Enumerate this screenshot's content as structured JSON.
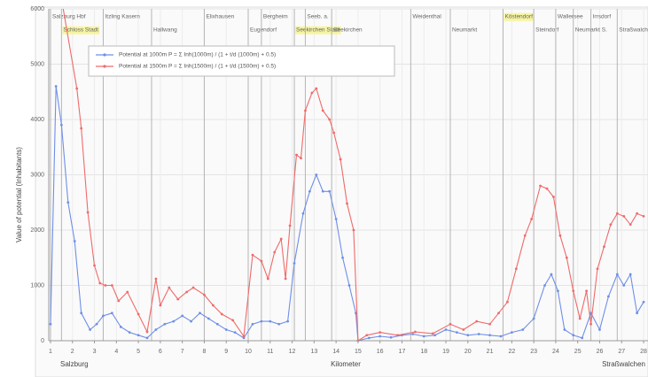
{
  "chart_data": {
    "type": "line",
    "xlabel_left": "Salzburg",
    "xlabel": "Kilometer",
    "xlabel_right": "Straßwalchen",
    "ylabel": "Value of potential (Inhabitants)",
    "xlim": [
      0.92,
      28.2
    ],
    "ylim": [
      0,
      6000
    ],
    "xticks": [
      1,
      2,
      3,
      4,
      5,
      6,
      7,
      8,
      9,
      10,
      11,
      12,
      13,
      14,
      15,
      16,
      17,
      18,
      19,
      20,
      21,
      22,
      23,
      24,
      25,
      26,
      27,
      28
    ],
    "yticks": [
      0,
      1000,
      2000,
      3000,
      4000,
      5000,
      6000
    ],
    "grid": true,
    "stations": [
      {
        "km": 1.0,
        "label": "Salzburg Hbf",
        "highlight": false
      },
      {
        "km": 1.5,
        "label": "Schloss Stadt",
        "highlight": true
      },
      {
        "km": 3.4,
        "label": "Itzling Kasern",
        "highlight": false
      },
      {
        "km": 5.6,
        "label": "Hallwang",
        "highlight": false
      },
      {
        "km": 8.0,
        "label": "Elixhausen",
        "highlight": false
      },
      {
        "km": 10.0,
        "label": "Eugendorf",
        "highlight": false
      },
      {
        "km": 10.6,
        "label": "Bergheim",
        "highlight": false
      },
      {
        "km": 12.1,
        "label": "Seekirchen Stadt",
        "highlight": true
      },
      {
        "km": 12.6,
        "label": "Seeb. a.",
        "highlight": false
      },
      {
        "km": 13.8,
        "label": "Seekirchen",
        "highlight": false
      },
      {
        "km": 17.4,
        "label": "Weidenthal",
        "highlight": false
      },
      {
        "km": 19.2,
        "label": "Neumarkt",
        "highlight": false
      },
      {
        "km": 21.6,
        "label": "Köstendorf",
        "highlight": true
      },
      {
        "km": 23.0,
        "label": "Steindorf",
        "highlight": false
      },
      {
        "km": 24.0,
        "label": "Wallersee",
        "highlight": false
      },
      {
        "km": 24.8,
        "label": "Neumarkt S.",
        "highlight": false
      },
      {
        "km": 25.6,
        "label": "Irrsdorf",
        "highlight": false
      },
      {
        "km": 26.8,
        "label": "Straßwalchen",
        "highlight": false
      }
    ],
    "series": [
      {
        "name": "Potential at 1000m   P = Σ Inh(1000m) / (1 + t/d (1000m) + 0.5)",
        "color": "#6f8fe8",
        "x": [
          1.0,
          1.25,
          1.5,
          1.8,
          2.1,
          2.4,
          2.8,
          3.1,
          3.4,
          3.8,
          4.2,
          4.6,
          5.0,
          5.4,
          5.8,
          6.2,
          6.6,
          7.0,
          7.4,
          7.8,
          8.2,
          8.6,
          9.0,
          9.4,
          9.8,
          10.2,
          10.6,
          11.0,
          11.4,
          11.8,
          12.1,
          12.5,
          12.8,
          13.1,
          13.4,
          13.7,
          14.0,
          14.3,
          14.6,
          14.9,
          15.0,
          15.5,
          16.0,
          16.5,
          17.0,
          17.5,
          18.0,
          18.5,
          19.0,
          19.5,
          20.0,
          20.5,
          21.0,
          21.5,
          22.0,
          22.5,
          23.0,
          23.5,
          23.8,
          24.1,
          24.4,
          24.8,
          25.2,
          25.6,
          26.0,
          26.4,
          26.8,
          27.1,
          27.4,
          27.7,
          28.0
        ],
        "values": [
          300,
          4600,
          3900,
          2500,
          1800,
          500,
          200,
          300,
          450,
          500,
          250,
          150,
          100,
          50,
          200,
          300,
          350,
          450,
          350,
          500,
          400,
          300,
          200,
          150,
          50,
          300,
          350,
          350,
          300,
          350,
          1400,
          2300,
          2700,
          3000,
          2700,
          2700,
          2200,
          1500,
          1000,
          500,
          0,
          50,
          80,
          60,
          100,
          120,
          80,
          100,
          200,
          150,
          100,
          120,
          100,
          80,
          150,
          200,
          400,
          1000,
          1200,
          900,
          200,
          100,
          50,
          500,
          200,
          800,
          1200,
          1000,
          1200,
          500,
          700
        ]
      },
      {
        "name": "Potential at 1500m   P = Σ Inh(1500m) / (1 + t/d (1500m) + 0.5)",
        "color": "#f06a6a",
        "x": [
          1.45,
          2.2,
          2.4,
          2.7,
          3.0,
          3.25,
          3.5,
          3.8,
          4.1,
          4.5,
          5.0,
          5.4,
          5.8,
          6.0,
          6.4,
          6.8,
          7.2,
          7.5,
          8.0,
          8.4,
          8.8,
          9.3,
          9.8,
          10.2,
          10.6,
          10.9,
          11.2,
          11.5,
          11.7,
          11.9,
          12.2,
          12.4,
          12.6,
          12.9,
          13.1,
          13.4,
          13.7,
          13.9,
          14.2,
          14.5,
          14.8,
          15.0,
          15.4,
          16.0,
          16.8,
          17.6,
          18.4,
          19.2,
          19.8,
          20.4,
          21.0,
          21.4,
          21.8,
          22.2,
          22.6,
          22.9,
          23.3,
          23.6,
          23.9,
          24.2,
          24.5,
          24.8,
          25.1,
          25.4,
          25.6,
          25.9,
          26.2,
          26.5,
          26.8,
          27.1,
          27.4,
          27.7,
          28.0
        ],
        "values": [
          6300,
          4560,
          3840,
          2320,
          1360,
          1040,
          1000,
          1000,
          720,
          880,
          480,
          160,
          1120,
          640,
          960,
          750,
          880,
          960,
          830,
          640,
          480,
          370,
          80,
          1550,
          1440,
          1120,
          1600,
          1840,
          1120,
          2080,
          3360,
          3300,
          4160,
          4480,
          4560,
          4160,
          4000,
          3760,
          3280,
          2480,
          2000,
          0,
          100,
          150,
          100,
          160,
          130,
          300,
          200,
          350,
          300,
          500,
          700,
          1300,
          1900,
          2200,
          2800,
          2750,
          2600,
          1900,
          1500,
          900,
          400,
          900,
          300,
          1300,
          1700,
          2100,
          2300,
          2250,
          2100,
          2300,
          2250
        ]
      }
    ]
  }
}
